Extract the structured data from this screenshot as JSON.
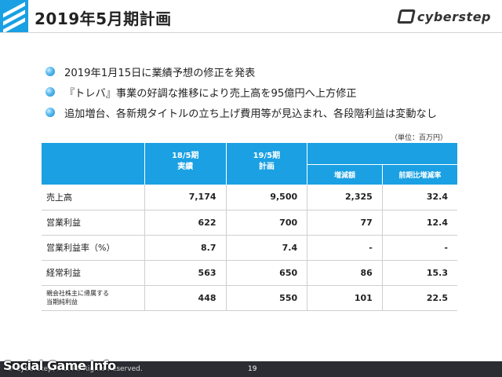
{
  "header": {
    "title": "2019年5月期計画",
    "brand": "cyberstep"
  },
  "bullets": [
    "2019年1月15日に業績予想の修正を発表",
    "『トレバ』事業の好調な推移により売上高を95億円へ上方修正",
    "追加増台、各新規タイトルの立ち上げ費用等が見込まれ、各段階利益は変動なし"
  ],
  "unit": "（単位：百万円）",
  "table": {
    "col1": "18/5期\n実績",
    "col2": "19/5期\n計画",
    "sub1": "増減額",
    "sub2": "前期比増減率",
    "rows": [
      {
        "label": "売上高",
        "a": "7,174",
        "b": "9,500",
        "c": "2,325",
        "d": "32.4"
      },
      {
        "label": "営業利益",
        "a": "622",
        "b": "700",
        "c": "77",
        "d": "12.4"
      },
      {
        "label": "営業利益率（%）",
        "a": "8.7",
        "b": "7.4",
        "c": "-",
        "d": "-"
      },
      {
        "label": "経常利益",
        "a": "563",
        "b": "650",
        "c": "86",
        "d": "15.3"
      },
      {
        "label": "親会社株主に帰属する\n当期純利益",
        "a": "448",
        "b": "550",
        "c": "101",
        "d": "22.5"
      }
    ]
  },
  "footer": {
    "copyright": "© CyberStep, Inc. All Rights Reserved.",
    "page": "19"
  },
  "watermark": "Social Game Info"
}
